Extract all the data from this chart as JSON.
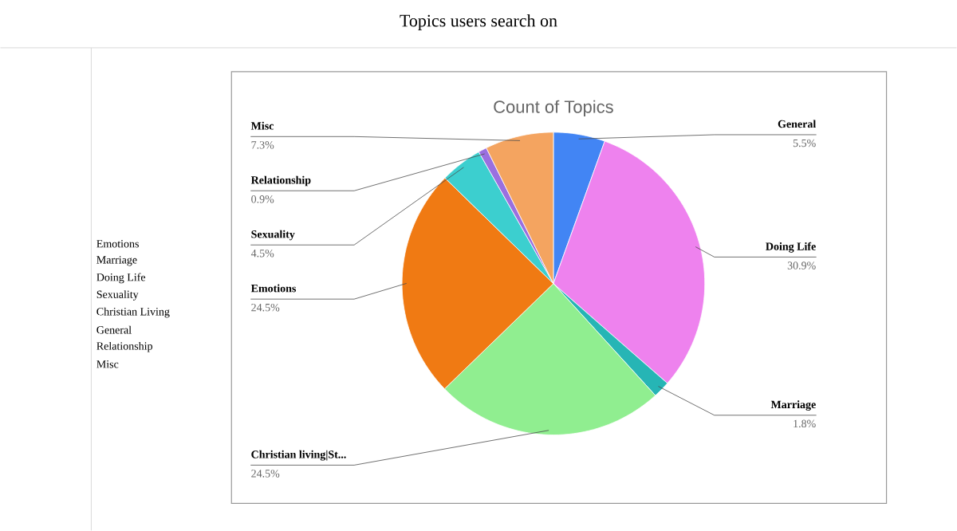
{
  "chart_data": {
    "type": "pie",
    "title": "Topics users search on",
    "subtitle": "Count of Topics",
    "categories": [
      "General",
      "Doing Life",
      "Marriage",
      "Christian living|St...",
      "Emotions",
      "Sexuality",
      "Relationship",
      "Misc"
    ],
    "values": [
      5.5,
      30.9,
      1.8,
      24.5,
      24.5,
      4.5,
      0.9,
      7.3
    ],
    "value_labels": [
      "5.5%",
      "30.9%",
      "1.8%",
      "24.5%",
      "24.5%",
      "4.5%",
      "0.9%",
      "7.3%"
    ],
    "colors": [
      "#4285f4",
      "#ee82ee",
      "#26b5b5",
      "#90ee90",
      "#f07a13",
      "#3ccfcf",
      "#9a6fe0",
      "#f4a460"
    ],
    "annotations": [
      "Emotions",
      "Marriage",
      "Doing Life",
      "Sexuality",
      "Christian Living",
      "General",
      "Relationship",
      "Misc"
    ]
  }
}
